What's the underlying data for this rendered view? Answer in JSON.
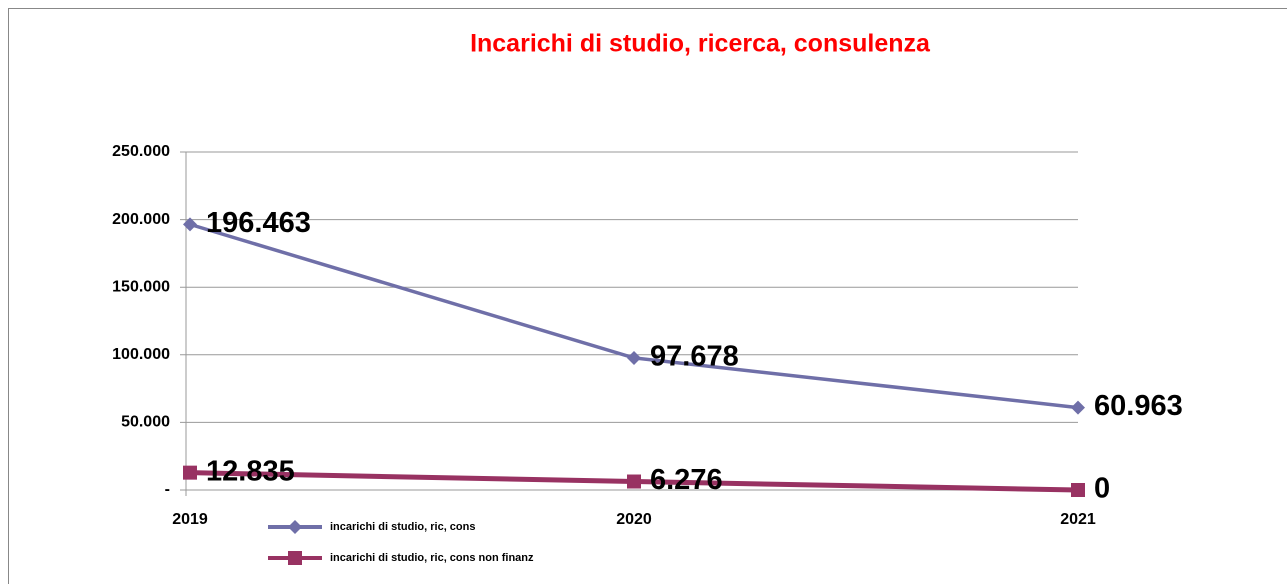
{
  "chart_data": {
    "type": "line",
    "title": "Incarichi di studio, ricerca, consulenza",
    "title_color": "#ff0000",
    "categories": [
      "2019",
      "2020",
      "2021"
    ],
    "series": [
      {
        "name": "incarichi di studio, ric, cons",
        "color": "#6f6fa8",
        "marker": "diamond",
        "values": [
          196463,
          97678,
          60963
        ],
        "value_labels": [
          "196.463",
          "97.678",
          "60.963"
        ]
      },
      {
        "name": "incarichi di studio, ric, cons non finanz",
        "color": "#983262",
        "marker": "square",
        "values": [
          12835,
          6276,
          0
        ],
        "value_labels": [
          "12.835",
          "6.276",
          "0"
        ]
      }
    ],
    "ylim": [
      0,
      250000
    ],
    "yticks": [
      {
        "value": 0,
        "label": "-"
      },
      {
        "value": 50000,
        "label": "50.000"
      },
      {
        "value": 100000,
        "label": "100.000"
      },
      {
        "value": 150000,
        "label": "150.000"
      },
      {
        "value": 200000,
        "label": "200.000"
      },
      {
        "value": 250000,
        "label": "250.000"
      }
    ],
    "grid": true,
    "legend": "bottom-left"
  }
}
